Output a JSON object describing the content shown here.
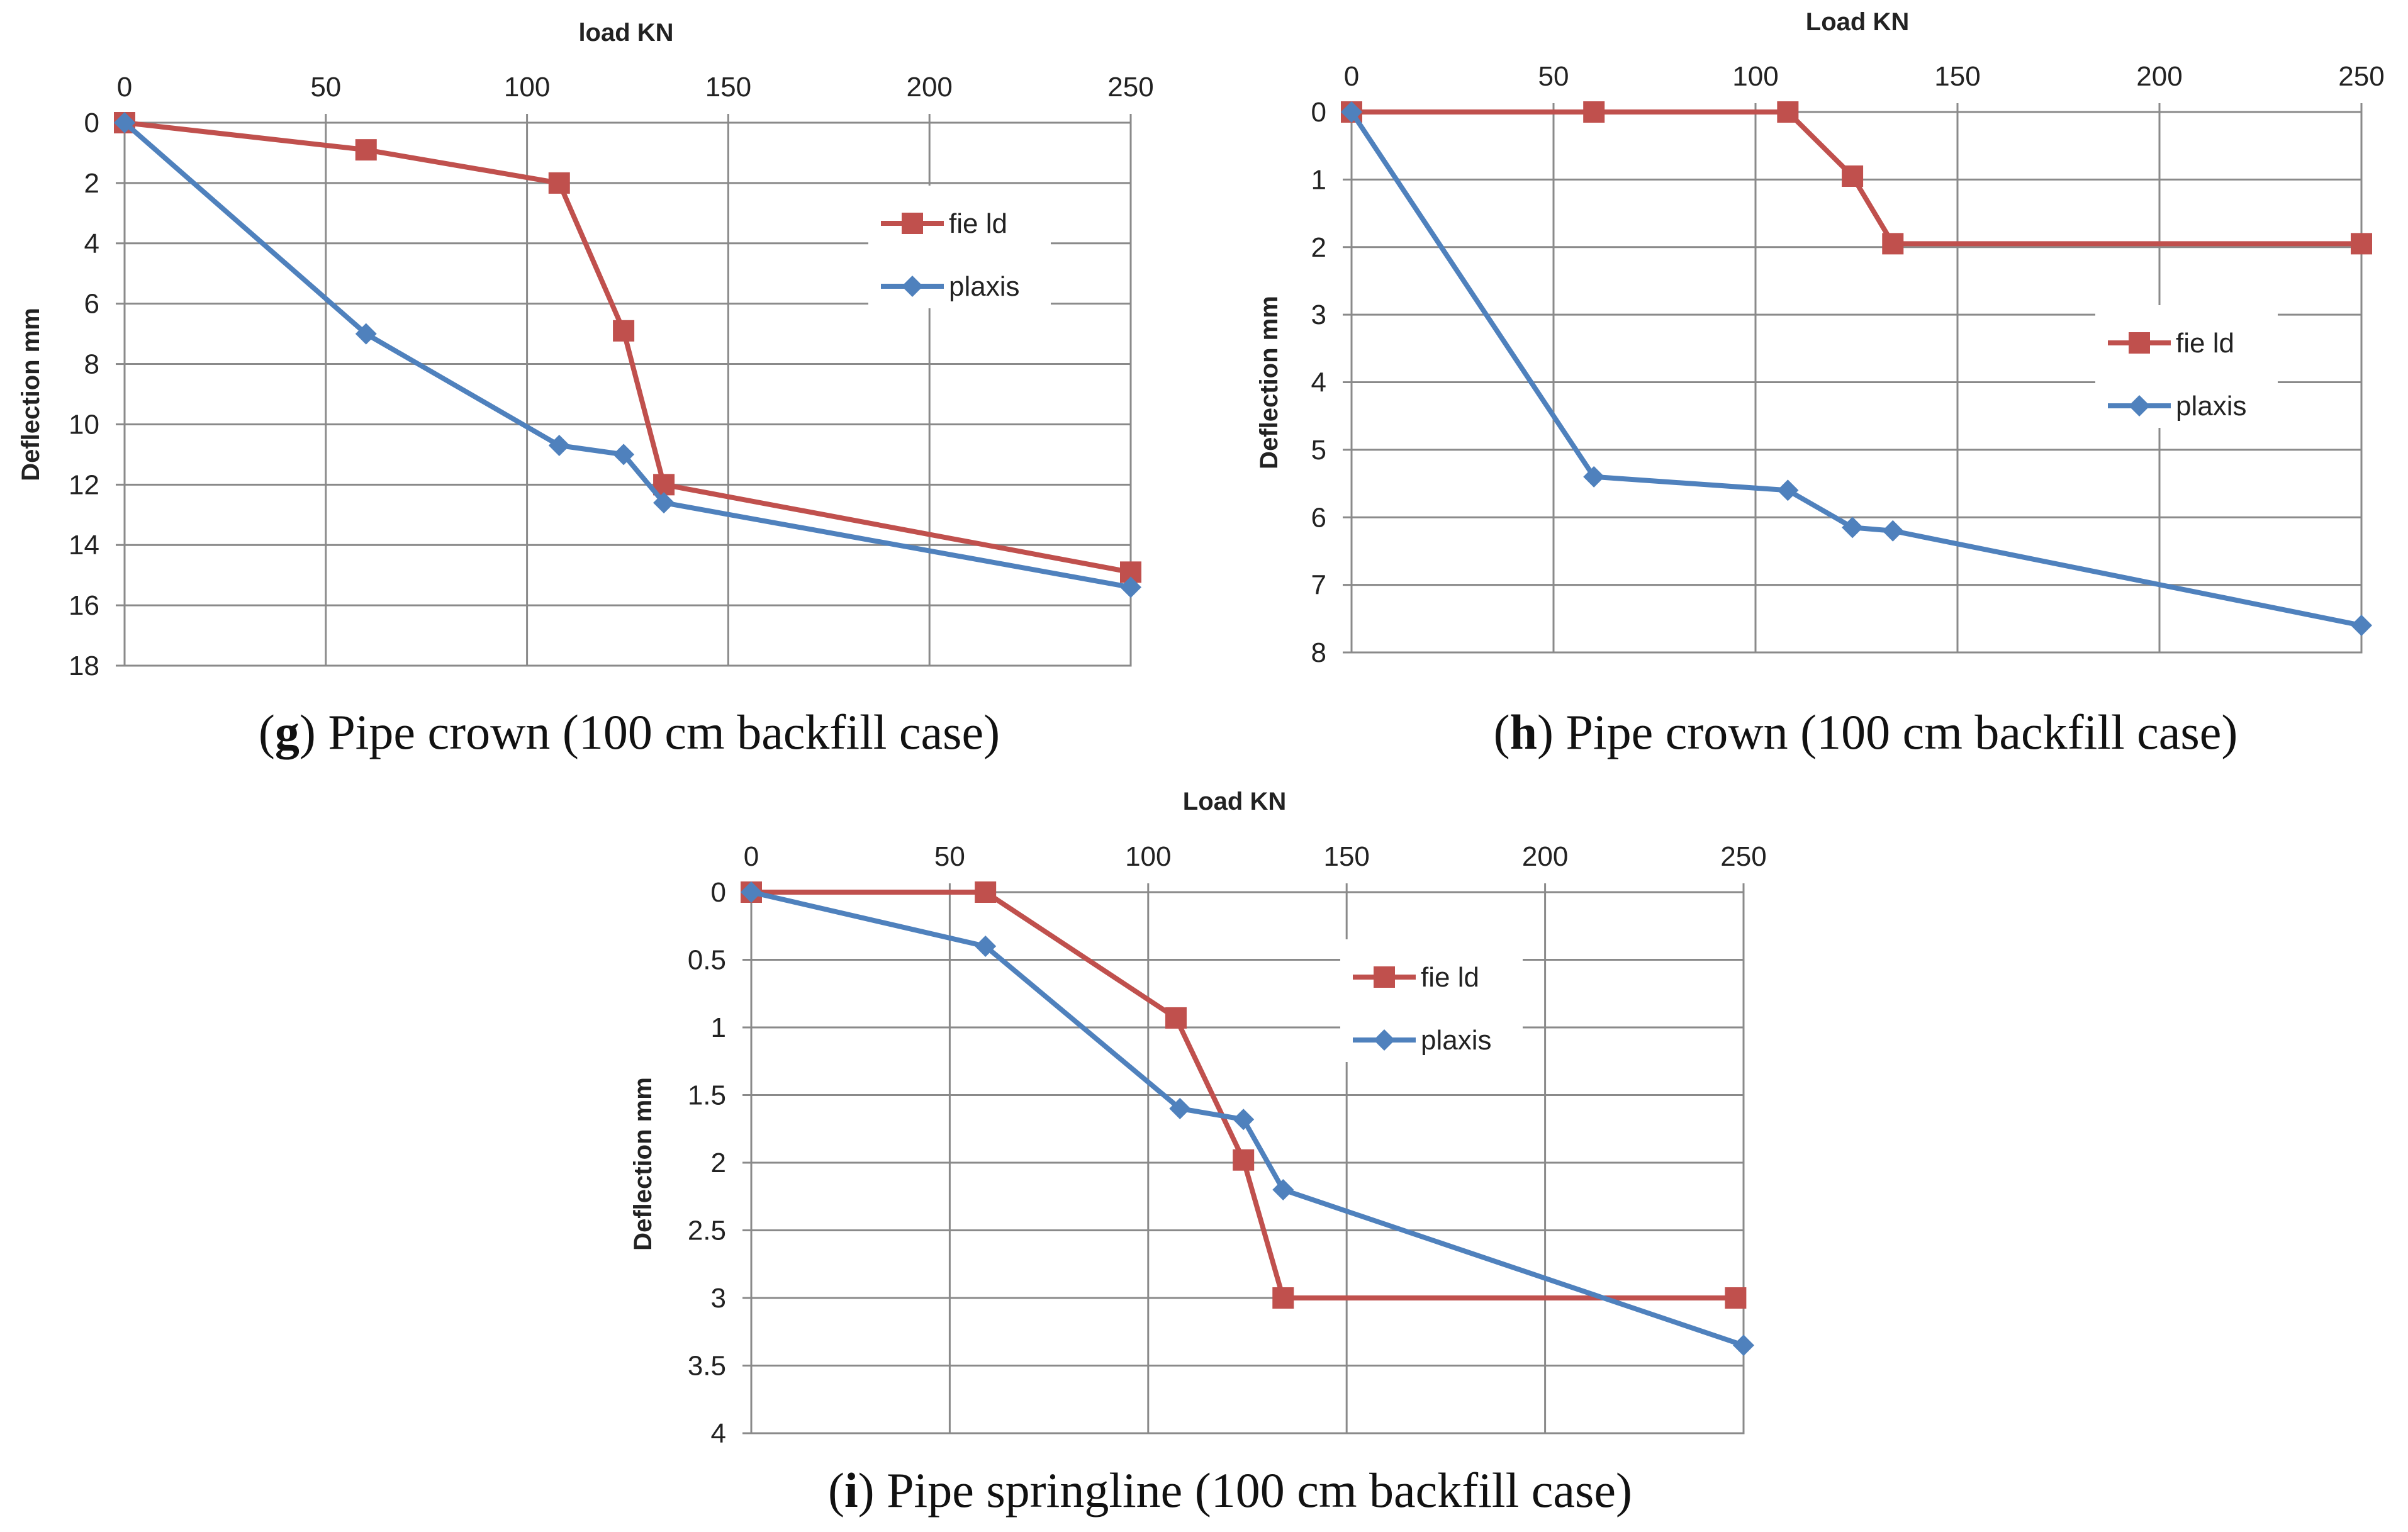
{
  "chart_data": [
    {
      "type": "line",
      "id": "g",
      "caption_letter": "g",
      "caption_text": ") Pipe crown (100 cm backfill case)",
      "caption_open": "(",
      "xlabel": "load KN",
      "ylabel": "Deflection mm",
      "xlim": [
        0,
        250
      ],
      "ylim": [
        0,
        18
      ],
      "y_inverted": true,
      "x_axis_position": "top",
      "grid": true,
      "x_ticks": [
        0,
        50,
        100,
        150,
        200,
        250
      ],
      "y_ticks": [
        0,
        2,
        4,
        6,
        8,
        10,
        12,
        14,
        16,
        18
      ],
      "legend": [
        "field",
        "plaxis"
      ],
      "legend_labels": [
        "fie ld",
        "plaxis"
      ],
      "legend_position": "right",
      "series": [
        {
          "name": "field",
          "color": "#c0504d",
          "marker": "square",
          "x": [
            0,
            60,
            108,
            124,
            134,
            250
          ],
          "y": [
            0,
            0.9,
            2.0,
            6.9,
            12.0,
            14.9
          ]
        },
        {
          "name": "plaxis",
          "color": "#4f81bd",
          "marker": "diamond",
          "x": [
            0,
            60,
            108,
            124,
            134,
            250
          ],
          "y": [
            0,
            7.0,
            10.7,
            11.0,
            12.6,
            15.4
          ]
        }
      ]
    },
    {
      "type": "line",
      "id": "h",
      "caption_letter": "h",
      "caption_text": ") Pipe crown (100 cm backfill case)",
      "caption_open": "(",
      "xlabel": "Load KN",
      "ylabel": "Deflection mm",
      "xlim": [
        0,
        250
      ],
      "ylim": [
        0,
        8
      ],
      "y_inverted": true,
      "x_axis_position": "top",
      "grid": true,
      "x_ticks": [
        0,
        50,
        100,
        150,
        200,
        250
      ],
      "y_ticks": [
        0,
        1,
        2,
        3,
        4,
        5,
        6,
        7,
        8
      ],
      "legend": [
        "field",
        "plaxis"
      ],
      "legend_labels": [
        "fie ld",
        "plaxis"
      ],
      "legend_position": "right",
      "series": [
        {
          "name": "field",
          "color": "#c0504d",
          "marker": "square",
          "x": [
            0,
            60,
            108,
            124,
            134,
            250
          ],
          "y": [
            0,
            0,
            0,
            0.95,
            1.95,
            1.95
          ]
        },
        {
          "name": "plaxis",
          "color": "#4f81bd",
          "marker": "diamond",
          "x": [
            0,
            60,
            108,
            124,
            134,
            250
          ],
          "y": [
            0,
            5.4,
            5.6,
            6.15,
            6.2,
            7.6
          ]
        }
      ]
    },
    {
      "type": "line",
      "id": "i",
      "caption_letter": "i",
      "caption_text": ") Pipe springline (100 cm backfill case)",
      "caption_open": "(",
      "xlabel": "Load KN",
      "ylabel": "Deflection mm",
      "xlim": [
        0,
        250
      ],
      "ylim": [
        0,
        4
      ],
      "y_inverted": true,
      "x_axis_position": "top",
      "grid": true,
      "x_ticks": [
        0,
        50,
        100,
        150,
        200,
        250
      ],
      "y_ticks": [
        0,
        0.5,
        1,
        1.5,
        2,
        2.5,
        3,
        3.5,
        4
      ],
      "legend": [
        "field",
        "plaxis"
      ],
      "legend_labels": [
        "fie ld",
        "plaxis"
      ],
      "legend_position": "right",
      "series": [
        {
          "name": "field",
          "color": "#c0504d",
          "marker": "square",
          "x": [
            0,
            59,
            107,
            124,
            134,
            248
          ],
          "y": [
            0,
            0,
            0.93,
            1.98,
            3.0,
            3.0
          ]
        },
        {
          "name": "plaxis",
          "color": "#4f81bd",
          "marker": "diamond",
          "x": [
            0,
            59,
            108,
            124,
            134,
            250
          ],
          "y": [
            0,
            0.4,
            1.6,
            1.68,
            2.2,
            3.35
          ]
        }
      ]
    }
  ]
}
